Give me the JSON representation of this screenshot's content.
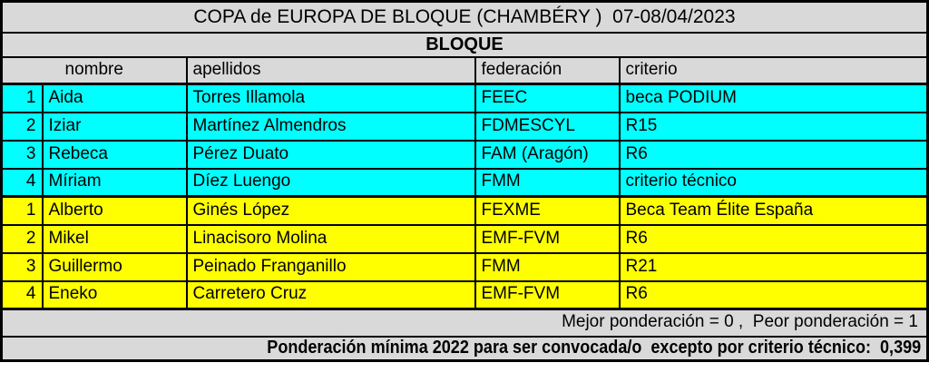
{
  "title": "COPA de EUROPA DE BLOQUE (CHAMBÉRY )  07-08/04/2023",
  "section_header": "BLOQUE",
  "table": {
    "columns": [
      "nombre",
      "apellidos",
      "federación",
      "criterio"
    ],
    "rows": [
      {
        "num": "1",
        "nombre": "Aida",
        "apellidos": "Torres Illamola",
        "federacion": "FEEC",
        "criterio": "beca PODIUM",
        "group": "female"
      },
      {
        "num": "2",
        "nombre": "Iziar",
        "apellidos": "Martínez Almendros",
        "federacion": "FDMESCYL",
        "criterio": "R15",
        "group": "female"
      },
      {
        "num": "3",
        "nombre": "Rebeca",
        "apellidos": "Pérez Duato",
        "federacion": "FAM (Aragón)",
        "criterio": "R6",
        "group": "female"
      },
      {
        "num": "4",
        "nombre": "Míriam",
        "apellidos": "Díez Luengo",
        "federacion": "FMM",
        "criterio": "criterio técnico",
        "group": "female"
      },
      {
        "num": "1",
        "nombre": "Alberto",
        "apellidos": "Ginés López",
        "federacion": "FEXME",
        "criterio": "Beca Team Élite España",
        "group": "male"
      },
      {
        "num": "2",
        "nombre": "Mikel",
        "apellidos": "Linacisoro Molina",
        "federacion": "EMF-FVM",
        "criterio": "R6",
        "group": "male"
      },
      {
        "num": "3",
        "nombre": "Guillermo",
        "apellidos": "Peinado Franganillo",
        "federacion": "FMM",
        "criterio": "R21",
        "group": "male"
      },
      {
        "num": "4",
        "nombre": "Eneko",
        "apellidos": "Carretero Cruz",
        "federacion": "EMF-FVM",
        "criterio": "R6",
        "group": "male"
      }
    ]
  },
  "footer": {
    "ponderacion_scale_note": "Mejor ponderación = 0 ,  Peor ponderación = 1",
    "minimum_note": "Ponderación mínima 2022 para ser convocada/o  excepto por criterio técnico:  0,399"
  },
  "colors": {
    "female_row_bg": "#00ffff",
    "male_row_bg": "#ffff00",
    "header_bg": "#d9d9d9",
    "border": "#000000"
  }
}
